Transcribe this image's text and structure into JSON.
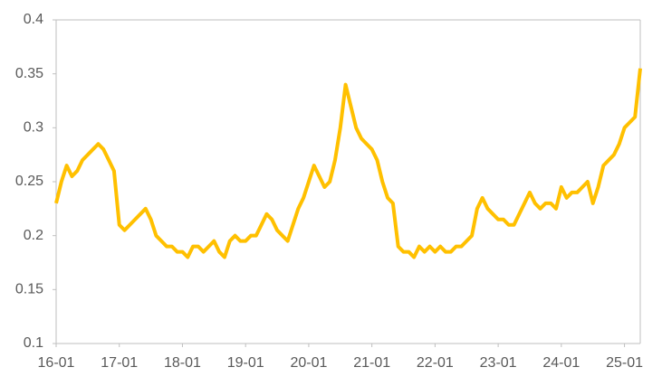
{
  "chart_data": {
    "type": "line",
    "categories": [
      "16-01",
      null,
      null,
      null,
      null,
      null,
      null,
      null,
      null,
      null,
      null,
      null,
      "17-01",
      null,
      null,
      null,
      null,
      null,
      null,
      null,
      null,
      null,
      null,
      null,
      "18-01",
      null,
      null,
      null,
      null,
      null,
      null,
      null,
      null,
      null,
      null,
      null,
      "19-01",
      null,
      null,
      null,
      null,
      null,
      null,
      null,
      null,
      null,
      null,
      null,
      "20-01",
      null,
      null,
      null,
      null,
      null,
      null,
      null,
      null,
      null,
      null,
      null,
      "21-01",
      null,
      null,
      null,
      null,
      null,
      null,
      null,
      null,
      null,
      null,
      null,
      "22-01",
      null,
      null,
      null,
      null,
      null,
      null,
      null,
      null,
      null,
      null,
      null,
      "23-01",
      null,
      null,
      null,
      null,
      null,
      null,
      null,
      null,
      null,
      null,
      null,
      "24-01",
      null,
      null,
      null,
      null,
      null,
      null,
      null,
      null,
      null,
      null,
      null,
      "25-01",
      null,
      null,
      null
    ],
    "series": [
      {
        "color": "#FFC000",
        "values": [
          0.23,
          0.25,
          0.265,
          0.255,
          0.26,
          0.27,
          0.275,
          0.28,
          0.285,
          0.28,
          0.27,
          0.26,
          0.21,
          0.205,
          0.21,
          0.215,
          0.22,
          0.225,
          0.215,
          0.2,
          0.195,
          0.19,
          0.19,
          0.185,
          0.185,
          0.18,
          0.19,
          0.19,
          0.185,
          0.19,
          0.195,
          0.185,
          0.18,
          0.195,
          0.2,
          0.195,
          0.195,
          0.2,
          0.2,
          0.21,
          0.22,
          0.215,
          0.205,
          0.2,
          0.195,
          0.21,
          0.225,
          0.235,
          0.25,
          0.265,
          0.255,
          0.245,
          0.25,
          0.27,
          0.3,
          0.34,
          0.32,
          0.3,
          0.29,
          0.285,
          0.28,
          0.27,
          0.25,
          0.235,
          0.23,
          0.19,
          0.185,
          0.185,
          0.18,
          0.19,
          0.185,
          0.19,
          0.185,
          0.19,
          0.185,
          0.185,
          0.19,
          0.19,
          0.195,
          0.2,
          0.225,
          0.235,
          0.225,
          0.22,
          0.215,
          0.215,
          0.21,
          0.21,
          0.22,
          0.23,
          0.24,
          0.23,
          0.225,
          0.23,
          0.23,
          0.225,
          0.245,
          0.235,
          0.24,
          0.24,
          0.245,
          0.25,
          0.23,
          0.245,
          0.265,
          0.27,
          0.275,
          0.285,
          0.3,
          0.305,
          0.31,
          0.355
        ]
      }
    ],
    "ylim": [
      0.1,
      0.4
    ],
    "yticks": [
      0.1,
      0.15,
      0.2,
      0.25,
      0.3,
      0.35,
      0.4
    ]
  }
}
